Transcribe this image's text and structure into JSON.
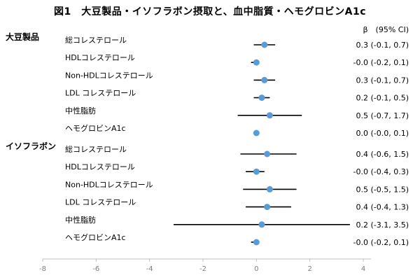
{
  "title": "図1　大豆製品・イソフラボン摂取と、血中脂質・ヘモグロビンA1c",
  "chart_data": {
    "type": "forest",
    "column_header": "β　(95% CI)",
    "xlim": [
      -8,
      5
    ],
    "xticks": [
      "-8",
      "-6",
      "-4",
      "-2",
      "0",
      "2",
      "4"
    ],
    "groups": [
      {
        "name": "大豆製品",
        "rows": [
          {
            "label": "総コレステロール",
            "beta": 0.3,
            "lo": -0.1,
            "hi": 0.7,
            "ci_text": "0.3 (-0.1, 0.7)"
          },
          {
            "label": "HDLコレステロール",
            "beta": 0.0,
            "lo": -0.2,
            "hi": 0.1,
            "ci_text": "-0.0 (-0.2, 0.1)"
          },
          {
            "label": "Non-HDLコレステロール",
            "beta": 0.3,
            "lo": -0.1,
            "hi": 0.7,
            "ci_text": "0.3 (-0.1, 0.7)"
          },
          {
            "label": "LDL コレステロール",
            "beta": 0.2,
            "lo": -0.1,
            "hi": 0.5,
            "ci_text": "0.2 (-0.1, 0.5)"
          },
          {
            "label": "中性脂肪",
            "beta": 0.5,
            "lo": -0.7,
            "hi": 1.7,
            "ci_text": "0.5 (-0.7, 1.7)"
          },
          {
            "label": "ヘモグロビンA1c",
            "beta": 0.0,
            "lo": 0.0,
            "hi": 0.1,
            "ci_text": "0.0 (-0.0, 0.1)"
          }
        ]
      },
      {
        "name": "イソフラボン",
        "rows": [
          {
            "label": "総コレステロール",
            "beta": 0.4,
            "lo": -0.6,
            "hi": 1.5,
            "ci_text": "0.4 (-0.6, 1.5)"
          },
          {
            "label": "HDLコレステロール",
            "beta": 0.0,
            "lo": -0.4,
            "hi": 0.3,
            "ci_text": "-0.0 (-0.4, 0.3)"
          },
          {
            "label": "Non-HDLコレステロール",
            "beta": 0.5,
            "lo": -0.5,
            "hi": 1.5,
            "ci_text": "0.5 (-0.5, 1.5)"
          },
          {
            "label": "LDL コレステロール",
            "beta": 0.4,
            "lo": -0.4,
            "hi": 1.3,
            "ci_text": "0.4 (-0.4, 1.3)"
          },
          {
            "label": "中性脂肪",
            "beta": 0.2,
            "lo": -3.1,
            "hi": 3.5,
            "ci_text": "0.2 (-3.1, 3.5)"
          },
          {
            "label": "ヘモグロビンA1c",
            "beta": 0.0,
            "lo": -0.2,
            "hi": 0.1,
            "ci_text": "-0.0 (-0.2, 0.1)"
          }
        ]
      }
    ],
    "colors": {
      "marker": "#5b9bd5",
      "ci_line": "#000000",
      "axis": "#bfbfbf",
      "tick_text": "#7f7f7f"
    }
  }
}
